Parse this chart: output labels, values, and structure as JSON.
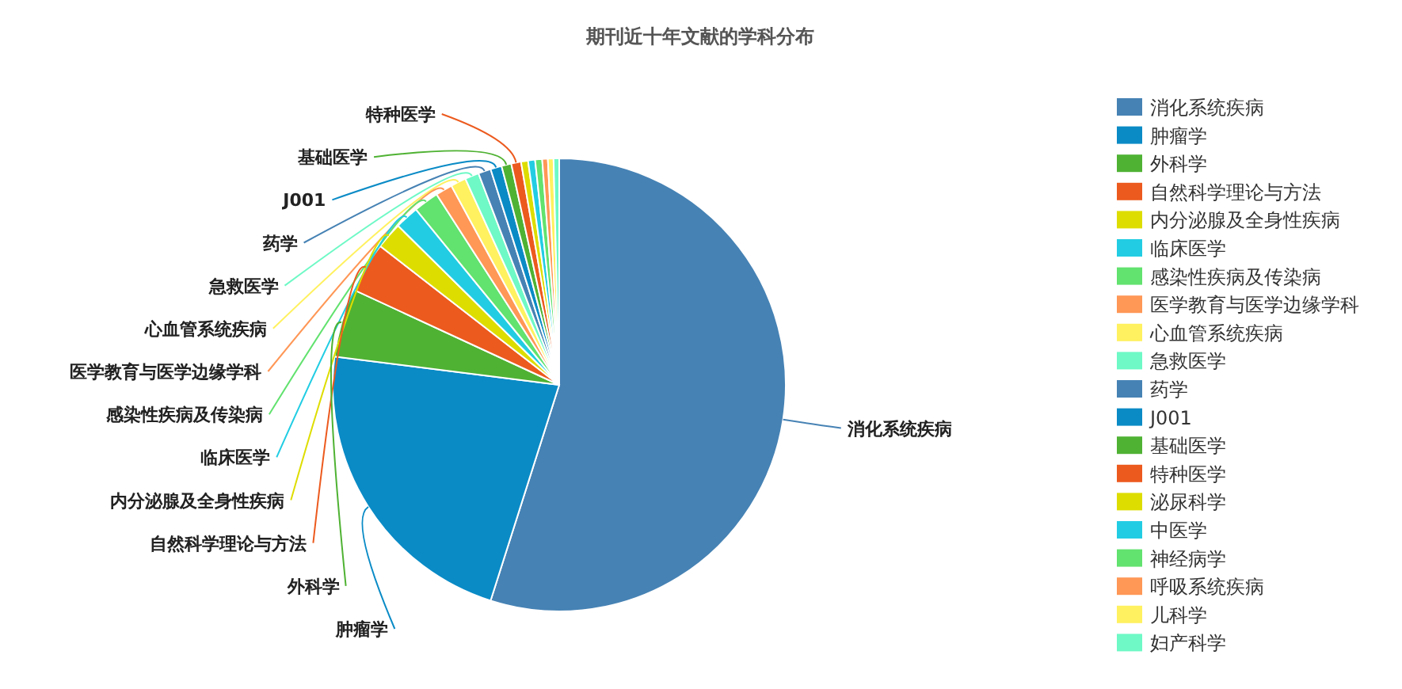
{
  "chart_data": {
    "type": "pie",
    "title": "期刊近十年文献的学科分布",
    "legend": "right",
    "categories": [
      "消化系统疾病",
      "肿瘤学",
      "外科学",
      "自然科学理论与方法",
      "内分泌腺及全身性疾病",
      "临床医学",
      "感染性疾病及传染病",
      "医学教育与医学边缘学科",
      "心血管系统疾病",
      "急救医学",
      "药学",
      "J001",
      "基础医学",
      "特种医学",
      "泌尿科学",
      "中医学",
      "神经病学",
      "呼吸系统疾病",
      "儿科学",
      "妇产科学"
    ],
    "values": [
      54.9,
      22.1,
      4.9,
      3.6,
      1.9,
      1.7,
      1.8,
      1.2,
      1.1,
      1.0,
      0.9,
      0.8,
      0.7,
      0.7,
      0.5,
      0.5,
      0.5,
      0.4,
      0.4,
      0.4
    ],
    "colors": [
      "#4682b4",
      "#0a8bc6",
      "#4fb233",
      "#ec5a1e",
      "#dedd00",
      "#22cde3",
      "#62e26f",
      "#ff9756",
      "#fff15f",
      "#6ef9c6",
      "#4682b4",
      "#0a8bc6",
      "#4fb233",
      "#ec5a1e",
      "#dedd00",
      "#22cde3",
      "#62e26f",
      "#ff9756",
      "#fff15f",
      "#6ef9c6"
    ]
  }
}
